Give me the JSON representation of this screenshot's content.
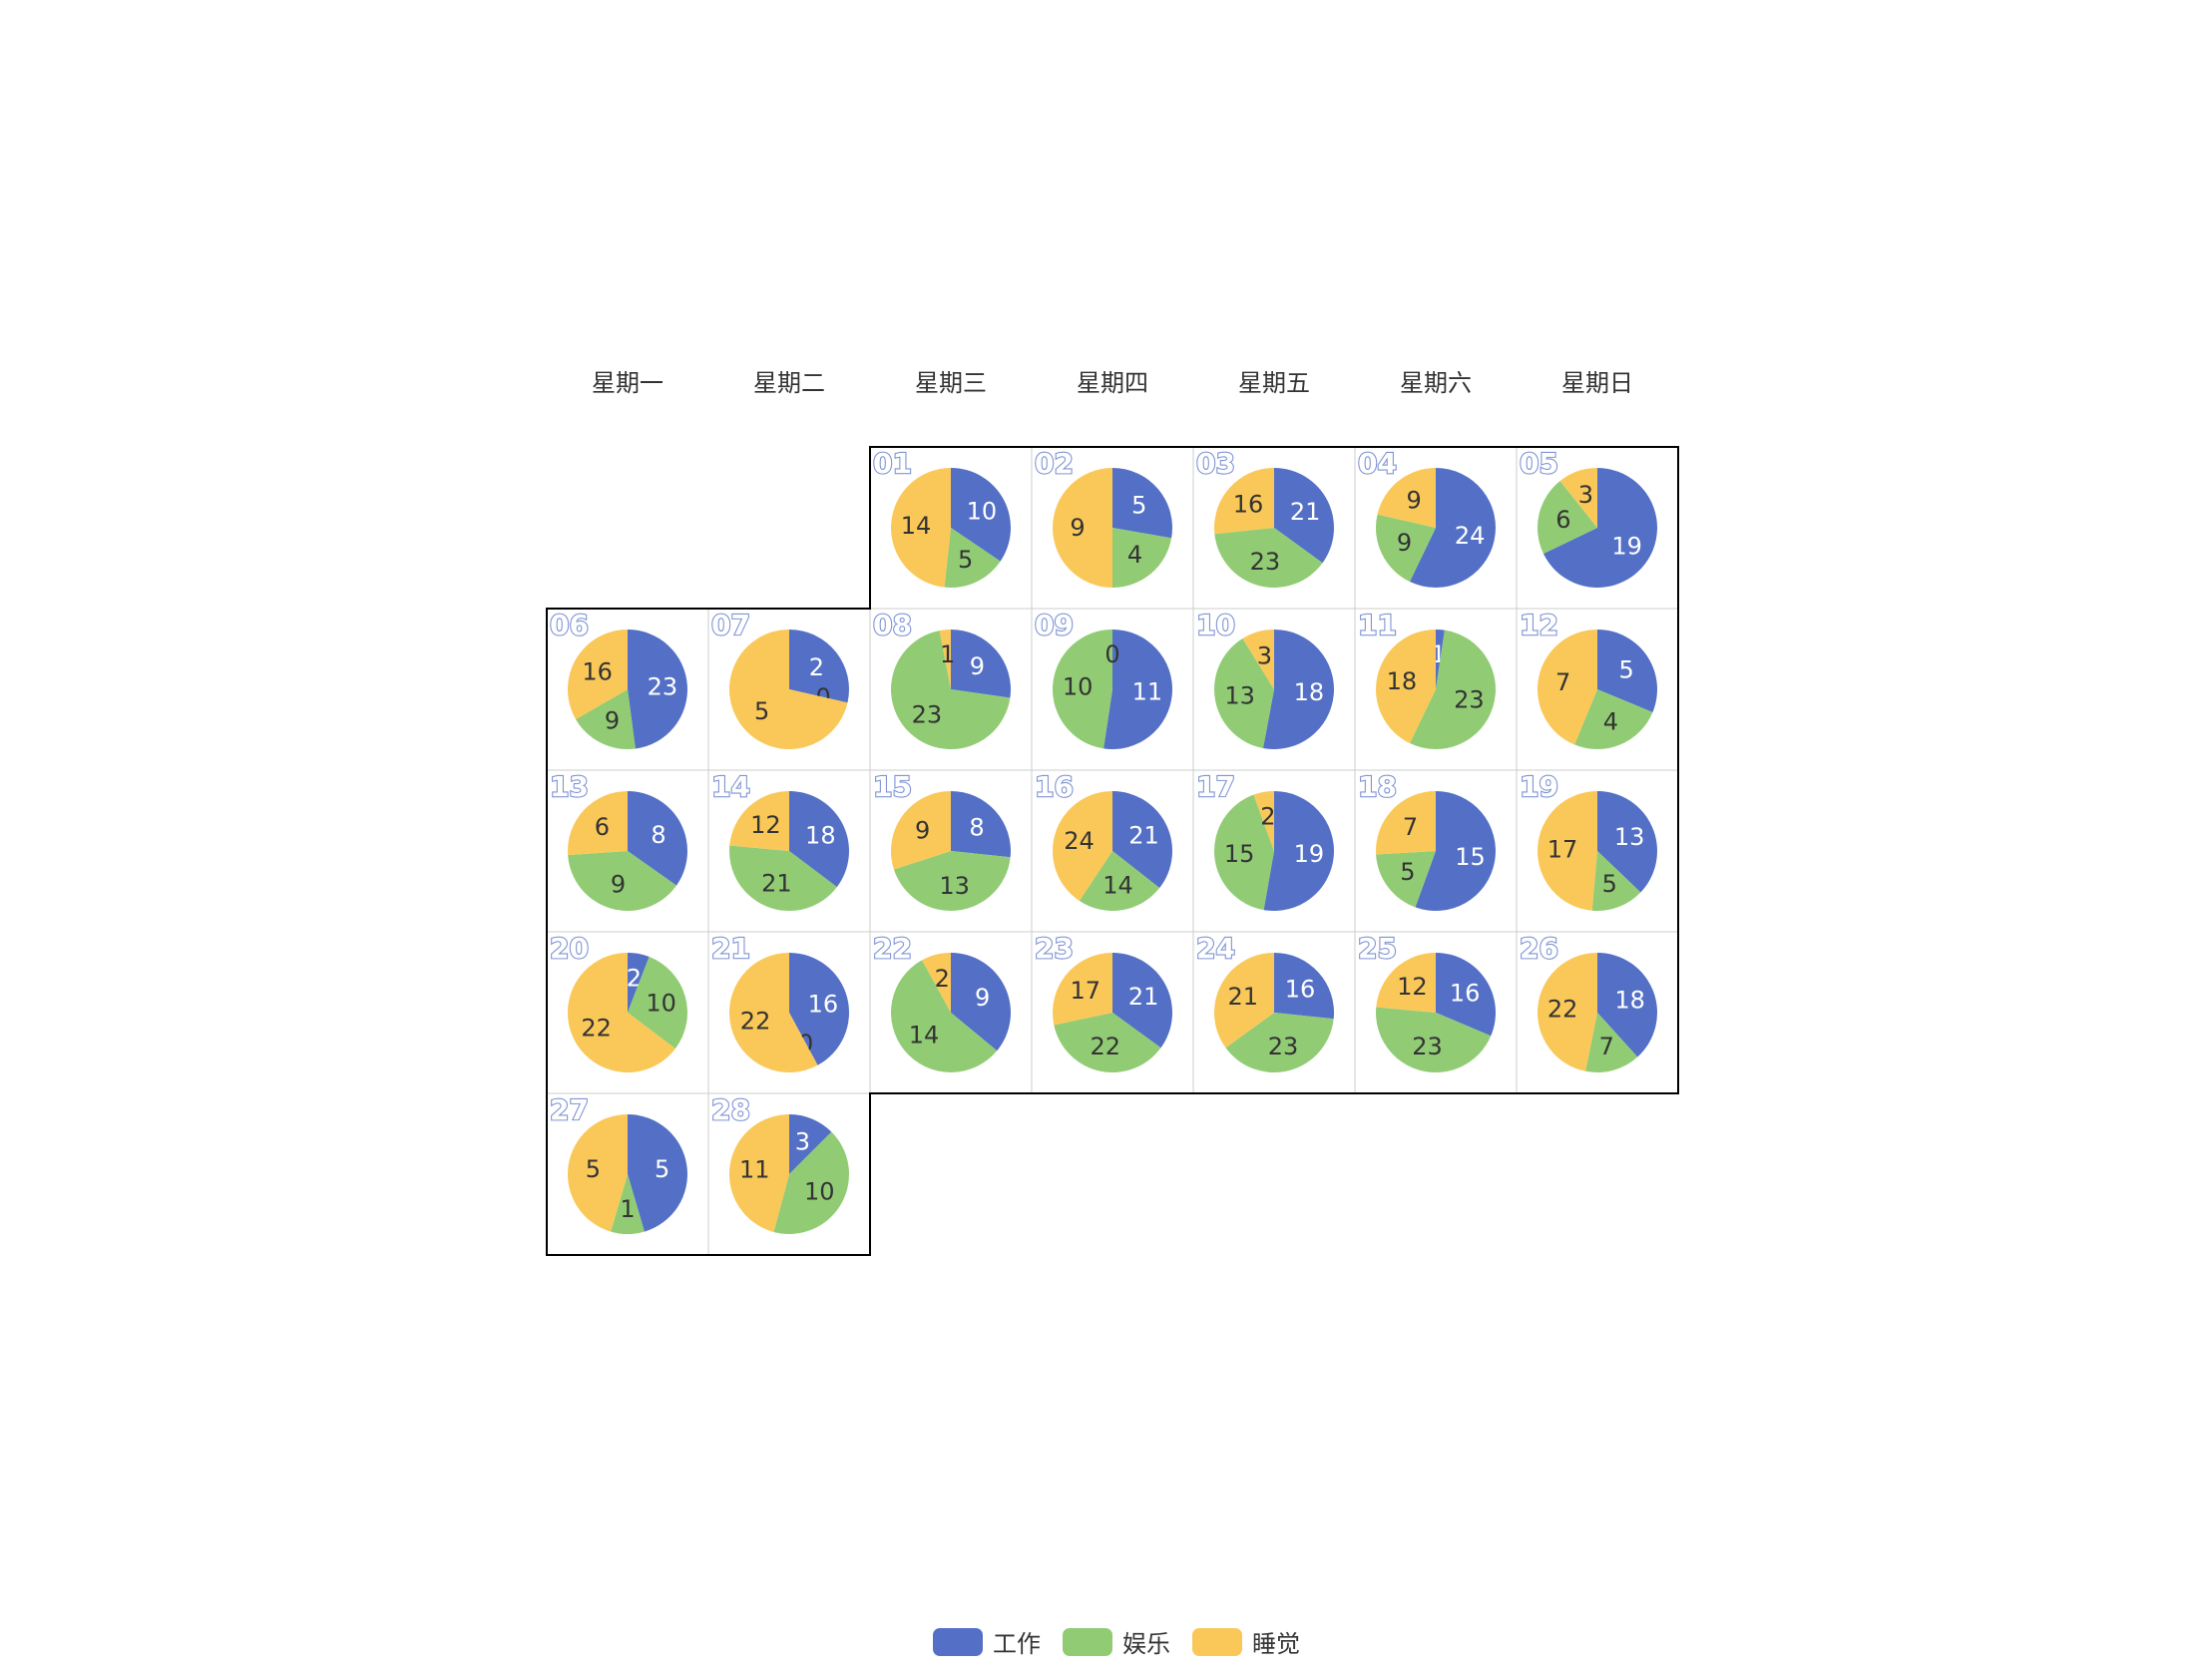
{
  "chart_data": {
    "type": "pie",
    "layout": "calendar",
    "weekdays": [
      "星期一",
      "星期二",
      "星期三",
      "星期四",
      "星期五",
      "星期六",
      "星期日"
    ],
    "series_names": [
      "工作",
      "娱乐",
      "睡觉"
    ],
    "colors": {
      "工作": "#5470c6",
      "娱乐": "#91cc75",
      "睡觉": "#fac858"
    },
    "days": [
      {
        "label": "01",
        "weekday": 3,
        "week": 1,
        "values": [
          10,
          5,
          14
        ]
      },
      {
        "label": "02",
        "weekday": 4,
        "week": 1,
        "values": [
          5,
          4,
          9
        ]
      },
      {
        "label": "03",
        "weekday": 5,
        "week": 1,
        "values": [
          21,
          23,
          16
        ]
      },
      {
        "label": "04",
        "weekday": 6,
        "week": 1,
        "values": [
          24,
          9,
          9
        ]
      },
      {
        "label": "05",
        "weekday": 7,
        "week": 1,
        "values": [
          19,
          6,
          3
        ]
      },
      {
        "label": "06",
        "weekday": 1,
        "week": 2,
        "values": [
          23,
          9,
          16
        ]
      },
      {
        "label": "07",
        "weekday": 2,
        "week": 2,
        "values": [
          2,
          0,
          5
        ]
      },
      {
        "label": "08",
        "weekday": 3,
        "week": 2,
        "values": [
          9,
          23,
          1
        ]
      },
      {
        "label": "09",
        "weekday": 4,
        "week": 2,
        "values": [
          11,
          10,
          0
        ]
      },
      {
        "label": "10",
        "weekday": 5,
        "week": 2,
        "values": [
          18,
          13,
          3
        ]
      },
      {
        "label": "11",
        "weekday": 6,
        "week": 2,
        "values": [
          1,
          23,
          18
        ]
      },
      {
        "label": "12",
        "weekday": 7,
        "week": 2,
        "values": [
          5,
          4,
          7
        ]
      },
      {
        "label": "13",
        "weekday": 1,
        "week": 3,
        "values": [
          8,
          9,
          6
        ]
      },
      {
        "label": "14",
        "weekday": 2,
        "week": 3,
        "values": [
          18,
          21,
          12
        ]
      },
      {
        "label": "15",
        "weekday": 3,
        "week": 3,
        "values": [
          8,
          13,
          9
        ]
      },
      {
        "label": "16",
        "weekday": 4,
        "week": 3,
        "values": [
          21,
          14,
          24
        ]
      },
      {
        "label": "17",
        "weekday": 5,
        "week": 3,
        "values": [
          19,
          15,
          2
        ]
      },
      {
        "label": "18",
        "weekday": 6,
        "week": 3,
        "values": [
          15,
          5,
          7
        ]
      },
      {
        "label": "19",
        "weekday": 7,
        "week": 3,
        "values": [
          13,
          5,
          17
        ]
      },
      {
        "label": "20",
        "weekday": 1,
        "week": 4,
        "values": [
          2,
          10,
          22
        ]
      },
      {
        "label": "21",
        "weekday": 2,
        "week": 4,
        "values": [
          16,
          0,
          22
        ]
      },
      {
        "label": "22",
        "weekday": 3,
        "week": 4,
        "values": [
          9,
          14,
          2
        ]
      },
      {
        "label": "23",
        "weekday": 4,
        "week": 4,
        "values": [
          21,
          22,
          17
        ]
      },
      {
        "label": "24",
        "weekday": 5,
        "week": 4,
        "values": [
          16,
          23,
          21
        ]
      },
      {
        "label": "25",
        "weekday": 6,
        "week": 4,
        "values": [
          16,
          23,
          12
        ]
      },
      {
        "label": "26",
        "weekday": 7,
        "week": 4,
        "values": [
          18,
          7,
          22
        ]
      },
      {
        "label": "27",
        "weekday": 1,
        "week": 5,
        "values": [
          5,
          1,
          5
        ]
      },
      {
        "label": "28",
        "weekday": 2,
        "week": 5,
        "values": [
          3,
          10,
          11
        ]
      }
    ],
    "legend": [
      "工作",
      "娱乐",
      "睡觉"
    ],
    "legend_position": "bottom"
  }
}
